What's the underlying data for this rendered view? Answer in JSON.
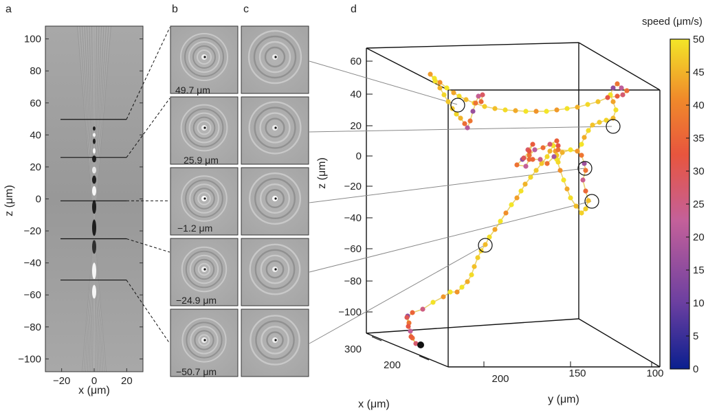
{
  "panels": {
    "a": {
      "label": "a",
      "xlabel": "x (μm)",
      "ylabel": "z (μm)",
      "xticks": [
        "−20",
        "0",
        "20"
      ],
      "yticks": [
        "100",
        "80",
        "60",
        "40",
        "20",
        "0",
        "−20",
        "−40",
        "−60",
        "−80",
        "−100"
      ],
      "slice_z": [
        49.7,
        25.9,
        -1.2,
        -24.9,
        -50.7
      ]
    },
    "b": {
      "label": "b",
      "tiles": [
        {
          "z_label": "49.7  μm"
        },
        {
          "z_label": "25.9  μm"
        },
        {
          "z_label": "−1.2  μm"
        },
        {
          "z_label": "−24.9  μm"
        },
        {
          "z_label": "−50.7  μm"
        }
      ]
    },
    "c": {
      "label": "c"
    },
    "d": {
      "label": "d",
      "xlabel": "x (μm)",
      "ylabel": "y (μm)",
      "zlabel": "z (μm)",
      "z_ticks": [
        "60",
        "40",
        "20",
        "0",
        "−20",
        "−40",
        "−60",
        "−80",
        "−100"
      ],
      "x_ticks": [
        "300",
        "200"
      ],
      "y_ticks": [
        "200",
        "150",
        "100"
      ],
      "colorbar": {
        "title": "speed  (μm/s)",
        "min": 0,
        "max": 50,
        "ticks": [
          "50",
          "45",
          "40",
          "35",
          "30",
          "25",
          "20",
          "15",
          "10",
          "5",
          "0"
        ],
        "colors": [
          "#0a1f8f",
          "#6b3fa0",
          "#c4609a",
          "#e8553e",
          "#f08a2a",
          "#f3e628"
        ]
      }
    }
  },
  "chart_data": {
    "type": "scatter",
    "title": "",
    "dimensions": [
      "x",
      "y",
      "z"
    ],
    "units": "μm",
    "color_by": "speed (μm/s)",
    "z_range": [
      -110,
      65
    ],
    "trajectory_z_approx": [
      -75,
      -60,
      -40,
      -25,
      -10,
      5,
      10,
      0,
      -20,
      -35,
      -30,
      0,
      20,
      30,
      40,
      45,
      30,
      25,
      40,
      45,
      30,
      15,
      20
    ]
  }
}
